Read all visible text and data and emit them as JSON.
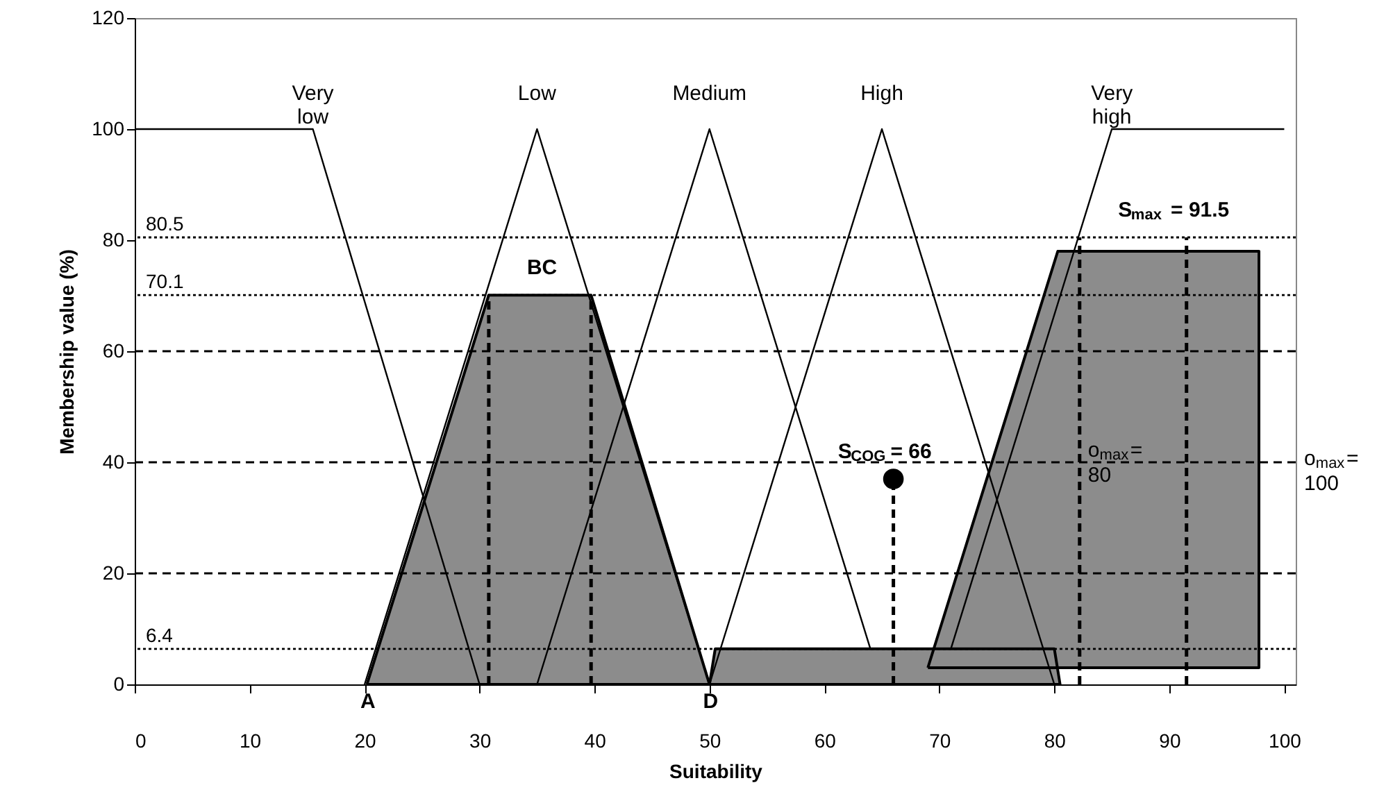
{
  "chart_data": {
    "type": "line",
    "xlabel": "Suitability",
    "ylabel": "Membership value (%)",
    "xlim": [
      0,
      101
    ],
    "ylim": [
      0,
      120
    ],
    "xticks": [
      0,
      10,
      20,
      30,
      40,
      50,
      60,
      70,
      80,
      90,
      100
    ],
    "yticks": [
      0,
      20,
      40,
      60,
      80,
      100,
      120
    ],
    "grid": false,
    "ref_lines": [
      {
        "axis": "y",
        "value": 20,
        "line_style": "dashed",
        "color": "#000000"
      },
      {
        "axis": "y",
        "value": 40,
        "line_style": "dashed",
        "color": "#000000"
      },
      {
        "axis": "y",
        "value": 60,
        "line_style": "dashed",
        "color": "#000000"
      },
      {
        "axis": "y",
        "value": 80.5,
        "label": "80.5",
        "line_style": "dotted",
        "color": "#000000"
      },
      {
        "axis": "y",
        "value": 70.1,
        "label": "70.1",
        "line_style": "dotted",
        "color": "#000000"
      },
      {
        "axis": "y",
        "value": 6.4,
        "label": "6.4",
        "line_style": "dotted",
        "color": "#000000"
      }
    ],
    "series": [
      {
        "type": "area",
        "color": "#8c8c8c",
        "x": [
          20.2,
          30.8,
          39.7,
          50,
          20.2
        ],
        "values": [
          0,
          70.1,
          70.1,
          0,
          0
        ]
      },
      {
        "type": "area",
        "color": "#8c8c8c",
        "x": [
          69,
          80.3,
          97.8,
          97.8,
          69
        ],
        "values": [
          3,
          78,
          78,
          3,
          3
        ]
      },
      {
        "type": "area",
        "color": "#8c8c8c",
        "x": [
          50,
          50.5,
          80,
          80.5,
          50
        ],
        "values": [
          0,
          6.4,
          6.4,
          0,
          0
        ]
      },
      {
        "name": "Very\nlow",
        "color": "#000000",
        "line_style": "solid",
        "x": [
          0,
          15.5,
          30
        ],
        "values": [
          100,
          100,
          0
        ]
      },
      {
        "name": "Low",
        "color": "#000000",
        "line_style": "solid",
        "x": [
          20,
          35,
          50
        ],
        "values": [
          0,
          100,
          0
        ]
      },
      {
        "name": "Medium",
        "color": "#000000",
        "line_style": "solid",
        "x": [
          35,
          50,
          64
        ],
        "values": [
          0,
          100,
          6.4
        ]
      },
      {
        "name": "High",
        "color": "#000000",
        "line_style": "solid",
        "x": [
          50,
          65,
          80
        ],
        "values": [
          0,
          100,
          0
        ]
      },
      {
        "name": "Very\nhigh",
        "color": "#000000",
        "line_style": "solid",
        "x": [
          71,
          85,
          100
        ],
        "values": [
          6.4,
          100,
          100
        ]
      },
      {
        "color": "#000000",
        "line_style": "dashed",
        "x": [
          30.8,
          30.8
        ],
        "values": [
          0,
          70.1
        ]
      },
      {
        "color": "#000000",
        "line_style": "dashed",
        "x": [
          39.7,
          39.7
        ],
        "values": [
          0,
          70.1
        ]
      },
      {
        "color": "#000000",
        "line_style": "dashed",
        "x": [
          66,
          66
        ],
        "values": [
          0,
          37
        ]
      },
      {
        "color": "#000000",
        "line_style": "dashed",
        "x": [
          82.2,
          82.2
        ],
        "values": [
          0,
          80.5
        ]
      },
      {
        "color": "#000000",
        "line_style": "dashed",
        "x": [
          91.5,
          91.5
        ],
        "values": [
          0,
          80.5
        ]
      },
      {
        "type": "scatter",
        "color": "#000000",
        "marker": "circle",
        "x": [
          66
        ],
        "values": [
          37
        ]
      }
    ],
    "annotations": [
      {
        "text": "A",
        "x": 20.2,
        "y": 0
      },
      {
        "text": "BC",
        "x": 35.25,
        "y": 70.1
      },
      {
        "text": "D",
        "x": 50,
        "y": 0
      },
      {
        "text": "S$_{max}$ = 91.5",
        "x": 91.5,
        "y": 80.5
      },
      {
        "text": "o$_{max}$=\n80",
        "x": 82.2,
        "y": 40
      },
      {
        "text": "S$_{COG}$ = 66",
        "x": 66,
        "y": 37
      },
      "o$_{max}$=\n100"
    ]
  }
}
